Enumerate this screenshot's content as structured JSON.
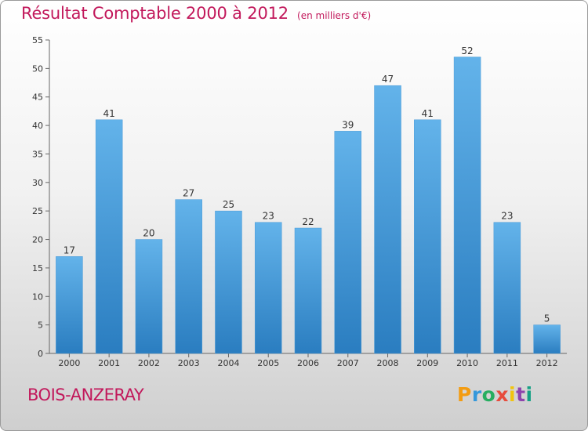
{
  "title": "Résultat Comptable 2000 à 2012",
  "subtitle": "(en milliers d'€)",
  "commune": "BOIS-ANZERAY",
  "logo": {
    "letters": [
      "P",
      "r",
      "o",
      "x",
      "i",
      "t",
      "i"
    ],
    "colors": [
      "#f39c12",
      "#3498db",
      "#27ae60",
      "#e74c3c",
      "#f1c40f",
      "#8e44ad",
      "#16a085"
    ]
  },
  "colors": {
    "bar_top": "#63b3ea",
    "bar_bottom": "#2a7dc0",
    "text_accent": "#c2185b"
  },
  "chart_data": {
    "type": "bar",
    "categories": [
      "2000",
      "2001",
      "2002",
      "2003",
      "2004",
      "2005",
      "2006",
      "2007",
      "2008",
      "2009",
      "2010",
      "2011",
      "2012"
    ],
    "values": [
      17,
      41,
      20,
      27,
      25,
      23,
      22,
      39,
      47,
      41,
      52,
      23,
      5
    ],
    "ylim": [
      0,
      55
    ],
    "yticks": [
      0,
      5,
      10,
      15,
      20,
      25,
      30,
      35,
      40,
      45,
      50,
      55
    ],
    "grid": false,
    "data_labels": true
  }
}
